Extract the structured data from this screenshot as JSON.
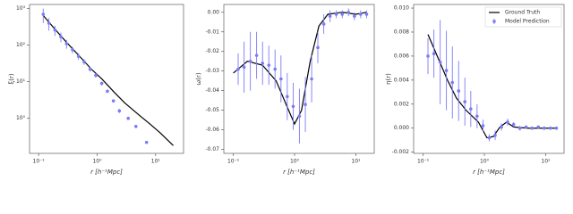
{
  "chart_data": [
    {
      "type": "errorbar",
      "xlabel": "r [h⁻¹Mpc]",
      "ylabel": "ξ(r)",
      "xscale": "log",
      "yscale": "log",
      "xlim": [
        0.07,
        30
      ],
      "ylim": [
        0.11,
        1300
      ],
      "xticks": [
        {
          "value": 0.1,
          "label": "10⁻¹"
        },
        {
          "value": 1,
          "label": "10⁰"
        },
        {
          "value": 10,
          "label": "10¹"
        }
      ],
      "yticks": [
        {
          "value": 1,
          "label": "10⁰"
        },
        {
          "value": 10,
          "label": "10¹"
        },
        {
          "value": 100,
          "label": "10²"
        },
        {
          "value": 1000,
          "label": "10³"
        }
      ],
      "series": [
        {
          "color": "#000000",
          "x": [
            0.12,
            0.2,
            0.3,
            0.5,
            0.8,
            1.2,
            2,
            3,
            5,
            8,
            12,
            20
          ],
          "values": [
            650,
            250,
            120,
            50,
            22,
            12,
            5,
            2.6,
            1.3,
            0.7,
            0.4,
            0.18
          ]
        },
        {
          "color": "#7b7bf7",
          "x": [
            0.12,
            0.15,
            0.19,
            0.24,
            0.3,
            0.38,
            0.48,
            0.6,
            0.76,
            0.95,
            1.2,
            1.5,
            1.9,
            2.4,
            3.4,
            4.6,
            7
          ],
          "values": [
            700,
            400,
            260,
            170,
            110,
            75,
            50,
            35,
            22,
            15,
            9,
            5.5,
            3,
            1.6,
            1.0,
            0.6,
            0.22
          ],
          "errors": [
            300,
            150,
            80,
            50,
            30,
            15,
            10,
            6,
            3,
            2,
            1,
            0.5,
            0.3,
            0.2,
            0.1,
            0.05,
            0.02
          ]
        }
      ]
    },
    {
      "type": "errorbar",
      "xlabel": "r [h⁻¹Mpc]",
      "ylabel": "ω(r)",
      "xscale": "log",
      "yscale": "linear",
      "xlim": [
        0.07,
        20
      ],
      "ylim": [
        -0.072,
        0.004
      ],
      "xticks": [
        {
          "value": 0.1,
          "label": "10⁻¹"
        },
        {
          "value": 1,
          "label": "10⁰"
        },
        {
          "value": 10,
          "label": "10¹"
        }
      ],
      "yticks": [
        {
          "value": 0,
          "label": "0.00"
        },
        {
          "value": -0.01,
          "label": "-0.01"
        },
        {
          "value": -0.02,
          "label": "-0.02"
        },
        {
          "value": -0.03,
          "label": "-0.03"
        },
        {
          "value": -0.04,
          "label": "-0.04"
        },
        {
          "value": -0.05,
          "label": "-0.05"
        },
        {
          "value": -0.06,
          "label": "-0.06"
        },
        {
          "value": -0.07,
          "label": "-0.07"
        }
      ],
      "series": [
        {
          "color": "#000000",
          "x": [
            0.1,
            0.17,
            0.3,
            0.5,
            0.8,
            1.0,
            1.3,
            1.8,
            2.5,
            3.5,
            6,
            10,
            15
          ],
          "values": [
            -0.031,
            -0.025,
            -0.027,
            -0.035,
            -0.05,
            -0.057,
            -0.05,
            -0.025,
            -0.007,
            -0.001,
            0,
            -0.001,
            0
          ]
        },
        {
          "color": "#7b7bf7",
          "x": [
            0.12,
            0.15,
            0.19,
            0.24,
            0.3,
            0.38,
            0.48,
            0.6,
            0.76,
            0.95,
            1.2,
            1.5,
            1.9,
            2.4,
            3,
            3.8,
            4.8,
            6,
            7.6,
            9.5,
            12,
            15
          ],
          "values": [
            -0.029,
            -0.028,
            -0.025,
            -0.022,
            -0.026,
            -0.027,
            -0.029,
            -0.034,
            -0.043,
            -0.048,
            -0.053,
            -0.047,
            -0.034,
            -0.018,
            -0.006,
            -0.002,
            -0.001,
            -0.001,
            0,
            -0.002,
            -0.001,
            -0.001
          ],
          "errors": [
            0.008,
            0.013,
            0.015,
            0.012,
            0.011,
            0.01,
            0.01,
            0.012,
            0.012,
            0.012,
            0.014,
            0.014,
            0.012,
            0.008,
            0.005,
            0.003,
            0.002,
            0.002,
            0.002,
            0.002,
            0.002,
            0.002
          ]
        }
      ]
    },
    {
      "type": "errorbar",
      "xlabel": "r [h⁻¹Mpc]",
      "ylabel": "η(r)",
      "xscale": "log",
      "yscale": "linear",
      "xlim": [
        0.07,
        20
      ],
      "ylim": [
        -0.0021,
        0.0103
      ],
      "legend": "upper right",
      "xticks": [
        {
          "value": 0.1,
          "label": "10⁻¹"
        },
        {
          "value": 1,
          "label": "10⁰"
        },
        {
          "value": 10,
          "label": "10¹"
        }
      ],
      "yticks": [
        {
          "value": -0.002,
          "label": "-0.002"
        },
        {
          "value": 0,
          "label": "0.000"
        },
        {
          "value": 0.002,
          "label": "0.002"
        },
        {
          "value": 0.004,
          "label": "0.004"
        },
        {
          "value": 0.006,
          "label": "0.006"
        },
        {
          "value": 0.008,
          "label": "0.008"
        },
        {
          "value": 0.01,
          "label": "0.010"
        }
      ],
      "series": [
        {
          "name": "Ground Truth",
          "color": "#000000",
          "x": [
            0.12,
            0.17,
            0.25,
            0.35,
            0.5,
            0.8,
            1.1,
            1.4,
            1.8,
            2.3,
            3,
            5,
            15
          ],
          "values": [
            0.0078,
            0.006,
            0.004,
            0.0025,
            0.0015,
            0.0005,
            -0.0008,
            -0.0007,
            0.0001,
            0.0005,
            0.0001,
            0,
            0
          ]
        },
        {
          "name": "Model Prediction",
          "color": "#7b7bf7",
          "x": [
            0.12,
            0.15,
            0.19,
            0.24,
            0.3,
            0.38,
            0.48,
            0.6,
            0.76,
            0.95,
            1.2,
            1.5,
            1.9,
            2.4,
            3,
            3.8,
            4.8,
            6,
            7.6,
            9.5,
            12,
            15
          ],
          "values": [
            0.006,
            0.0062,
            0.0055,
            0.0048,
            0.0038,
            0.0031,
            0.0022,
            0.0016,
            0.001,
            0.0002,
            -0.0008,
            -0.0006,
            0.0001,
            0.0005,
            0.0003,
            0,
            0.0001,
            0,
            0.0001,
            0,
            0,
            0
          ],
          "errors": [
            0.0015,
            0.002,
            0.0035,
            0.0033,
            0.003,
            0.0025,
            0.002,
            0.0015,
            0.001,
            0.0005,
            0.0003,
            0.0004,
            0.0003,
            0.0003,
            0.0002,
            0.0002,
            0.0001,
            0.0001,
            0.0001,
            0.0001,
            0.0001,
            0.0001
          ]
        }
      ]
    }
  ]
}
